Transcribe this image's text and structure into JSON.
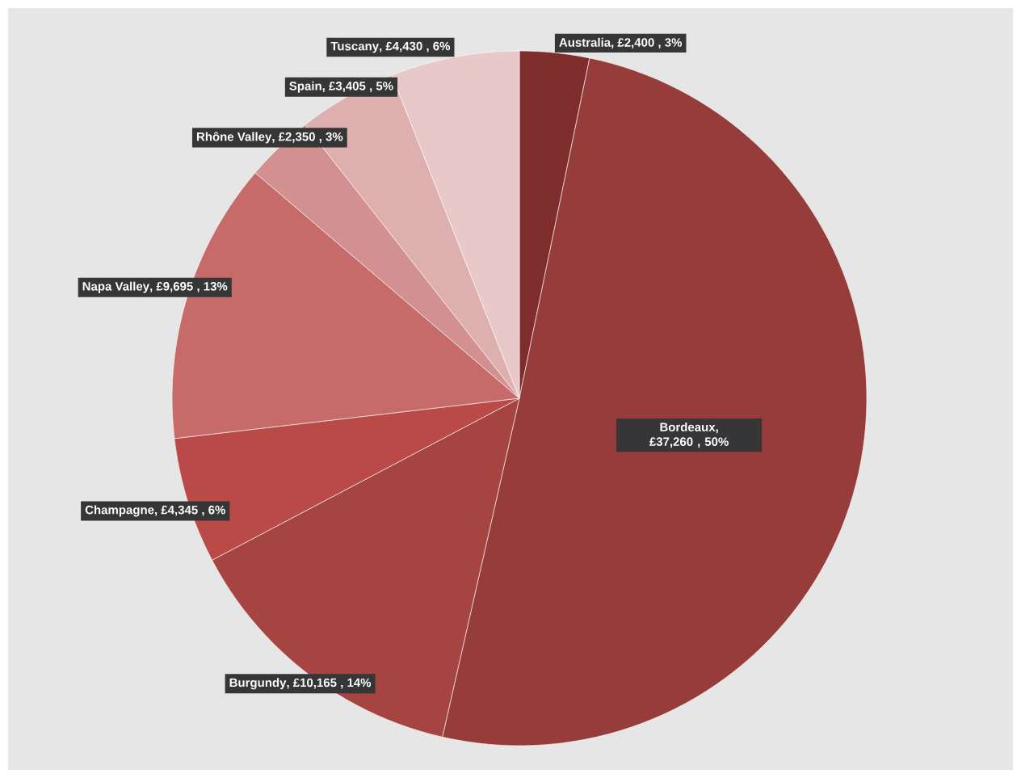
{
  "chart_data": {
    "type": "pie",
    "categories": [
      "Australia",
      "Bordeaux",
      "Burgundy",
      "Champagne",
      "Napa Valley",
      "Rhône Valley",
      "Spain",
      "Tuscany"
    ],
    "values": [
      2400,
      37260,
      10165,
      4345,
      9695,
      2350,
      3405,
      4430
    ],
    "value_labels": [
      ", £2,400 , 3%",
      ", £37,260 , 50%",
      ", £10,165 , 14%",
      ", £4,345 , 6%",
      ", £9,695 , 13%",
      ", £2,350 , 3%",
      ", £3,405 , 5%",
      ", £4,430 , 6%"
    ],
    "colors": [
      "#7f2c2c",
      "#963c3a",
      "#a64442",
      "#b94a47",
      "#c66b69",
      "#d39090",
      "#deafaf",
      "#e8c8c8"
    ]
  }
}
